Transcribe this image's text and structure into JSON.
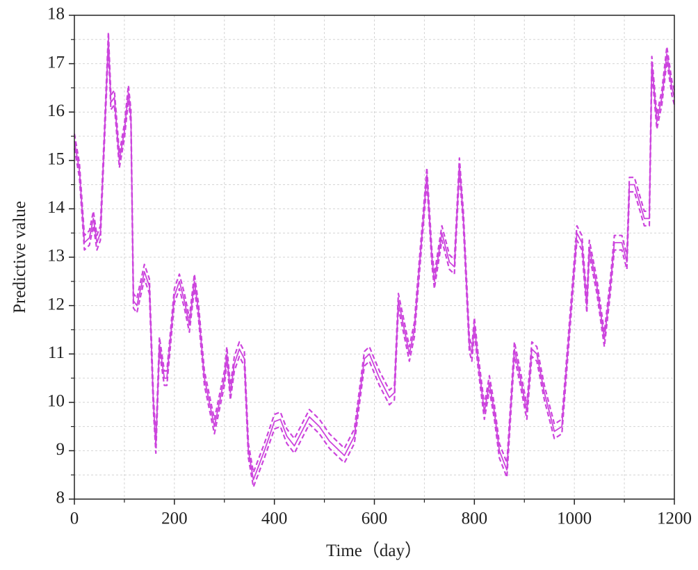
{
  "chart_data": {
    "type": "line",
    "xlabel": "Time（day）",
    "ylabel": "Predictive value",
    "xlim": [
      0,
      1200
    ],
    "ylim": [
      8,
      18
    ],
    "xticks": [
      0,
      200,
      400,
      600,
      800,
      1000,
      1200
    ],
    "yticks": [
      8,
      9,
      10,
      11,
      12,
      13,
      14,
      15,
      16,
      17,
      18
    ],
    "minor_xticks": [
      100,
      300,
      500,
      700,
      900,
      1100
    ],
    "minor_yticks": [
      8.5,
      9.5,
      10.5,
      11.5,
      12.5,
      13.5,
      14.5,
      15.5,
      16.5,
      17.5
    ],
    "grid": true,
    "x": [
      0,
      10,
      20,
      30,
      38,
      45,
      52,
      60,
      68,
      73,
      80,
      90,
      100,
      108,
      113,
      118,
      125,
      140,
      150,
      158,
      163,
      170,
      180,
      185,
      200,
      210,
      220,
      230,
      240,
      248,
      260,
      280,
      300,
      305,
      312,
      320,
      330,
      340,
      348,
      358,
      380,
      400,
      412,
      425,
      440,
      450,
      470,
      490,
      510,
      540,
      560,
      580,
      590,
      610,
      630,
      640,
      648,
      660,
      670,
      680,
      690,
      705,
      715,
      720,
      735,
      750,
      760,
      770,
      778,
      790,
      795,
      800,
      808,
      820,
      830,
      840,
      850,
      865,
      880,
      890,
      905,
      915,
      925,
      940,
      960,
      975,
      990,
      1005,
      1015,
      1025,
      1030,
      1045,
      1060,
      1072,
      1080,
      1095,
      1105,
      1110,
      1120,
      1140,
      1150,
      1155,
      1165,
      1175,
      1185,
      1195,
      1200
    ],
    "series": [
      {
        "color": "#cc44dd",
        "dash": false,
        "values": [
          15.4,
          14.8,
          13.3,
          13.4,
          13.8,
          13.3,
          13.5,
          15.5,
          17.5,
          16.2,
          16.3,
          15.0,
          15.6,
          16.4,
          15.9,
          12.1,
          12.0,
          12.7,
          12.4,
          10.0,
          9.1,
          11.2,
          10.5,
          10.5,
          12.2,
          12.5,
          12.1,
          11.6,
          12.5,
          11.9,
          10.5,
          9.5,
          10.5,
          11.0,
          10.2,
          10.8,
          11.1,
          10.9,
          9.0,
          8.4,
          9.0,
          9.6,
          9.65,
          9.3,
          9.1,
          9.3,
          9.7,
          9.5,
          9.2,
          8.9,
          9.3,
          10.9,
          11.0,
          10.5,
          10.1,
          10.2,
          12.1,
          11.5,
          11.0,
          11.5,
          12.8,
          14.7,
          13.0,
          12.5,
          13.5,
          12.9,
          12.8,
          14.9,
          13.8,
          11.2,
          11.0,
          11.6,
          10.8,
          9.8,
          10.4,
          9.8,
          9.0,
          8.6,
          11.1,
          10.6,
          9.8,
          11.1,
          11.0,
          10.2,
          9.4,
          9.5,
          11.5,
          13.5,
          13.3,
          12.0,
          13.2,
          12.4,
          11.3,
          12.4,
          13.3,
          13.3,
          12.9,
          14.5,
          14.5,
          13.8,
          13.8,
          17.0,
          15.8,
          16.3,
          17.2,
          16.5,
          16.3
        ]
      },
      {
        "color": "#cc44dd",
        "dash": true,
        "values": [
          15.55,
          14.95,
          13.45,
          13.55,
          13.95,
          13.45,
          13.65,
          15.65,
          17.65,
          16.35,
          16.45,
          15.15,
          15.75,
          16.55,
          16.05,
          12.25,
          12.15,
          12.85,
          12.55,
          10.15,
          9.25,
          11.35,
          10.65,
          10.65,
          12.35,
          12.65,
          12.25,
          11.75,
          12.65,
          12.05,
          10.65,
          9.65,
          10.65,
          11.15,
          10.35,
          10.95,
          11.25,
          11.05,
          9.15,
          8.55,
          9.15,
          9.75,
          9.8,
          9.45,
          9.25,
          9.45,
          9.85,
          9.65,
          9.35,
          9.05,
          9.45,
          11.05,
          11.15,
          10.65,
          10.25,
          10.35,
          12.25,
          11.65,
          11.15,
          11.65,
          12.95,
          14.85,
          13.15,
          12.65,
          13.65,
          13.05,
          12.95,
          15.05,
          13.95,
          11.35,
          11.15,
          11.75,
          10.95,
          9.95,
          10.55,
          9.95,
          9.15,
          8.75,
          11.25,
          10.75,
          9.95,
          11.25,
          11.15,
          10.35,
          9.55,
          9.65,
          11.65,
          13.65,
          13.45,
          12.15,
          13.35,
          12.55,
          11.45,
          12.55,
          13.45,
          13.45,
          13.05,
          14.65,
          14.65,
          13.95,
          13.95,
          17.15,
          15.95,
          16.45,
          17.35,
          16.65,
          16.45
        ]
      },
      {
        "color": "#cc44dd",
        "dash": true,
        "values": [
          15.25,
          14.65,
          13.15,
          13.25,
          13.65,
          13.15,
          13.35,
          15.35,
          17.35,
          16.05,
          16.15,
          14.85,
          15.45,
          16.25,
          15.75,
          11.95,
          11.85,
          12.55,
          12.25,
          9.85,
          8.95,
          11.05,
          10.35,
          10.35,
          12.05,
          12.35,
          11.95,
          11.45,
          12.35,
          11.75,
          10.35,
          9.35,
          10.35,
          10.85,
          10.05,
          10.65,
          10.95,
          10.75,
          8.85,
          8.25,
          8.85,
          9.45,
          9.5,
          9.15,
          8.95,
          9.15,
          9.55,
          9.35,
          9.05,
          8.75,
          9.15,
          10.75,
          10.85,
          10.35,
          9.95,
          10.05,
          11.95,
          11.35,
          10.85,
          11.35,
          12.65,
          14.55,
          12.85,
          12.35,
          13.35,
          12.75,
          12.65,
          14.75,
          13.65,
          11.05,
          10.85,
          11.45,
          10.65,
          9.65,
          10.25,
          9.65,
          8.85,
          8.45,
          10.95,
          10.45,
          9.65,
          10.95,
          10.85,
          10.05,
          9.25,
          9.35,
          11.35,
          13.35,
          13.15,
          11.85,
          13.05,
          12.25,
          11.15,
          12.25,
          13.15,
          13.15,
          12.75,
          14.35,
          14.35,
          13.65,
          13.65,
          16.85,
          15.65,
          16.15,
          17.05,
          16.35,
          16.15
        ]
      }
    ]
  }
}
